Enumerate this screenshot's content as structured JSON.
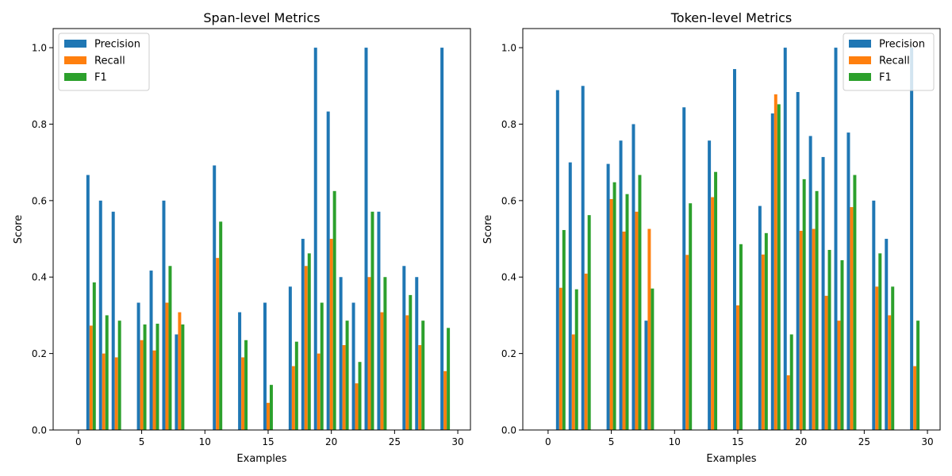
{
  "colors": {
    "precision": "#1f77b4",
    "recall": "#ff7f0e",
    "f1": "#2ca02c",
    "axis": "#000000",
    "legend_border": "#cccccc"
  },
  "chart_data": [
    {
      "type": "bar",
      "title": "Span-level Metrics",
      "xlabel": "Examples",
      "ylabel": "Score",
      "xlim": [
        -2,
        31
      ],
      "ylim": [
        0,
        1.05
      ],
      "xticks": [
        "0",
        "5",
        "10",
        "15",
        "20",
        "25",
        "30"
      ],
      "yticks": [
        "0.0",
        "0.2",
        "0.4",
        "0.6",
        "0.8",
        "1.0"
      ],
      "grid": false,
      "legend_position": "upper left",
      "x": [
        0,
        1,
        2,
        3,
        4,
        5,
        6,
        7,
        8,
        9,
        10,
        11,
        12,
        13,
        14,
        15,
        16,
        17,
        18,
        19,
        20,
        21,
        22,
        23,
        24,
        25,
        26,
        27,
        28,
        29
      ],
      "series": [
        {
          "name": "Precision",
          "values": [
            0,
            0.667,
            0.6,
            0.571,
            0,
            0.333,
            0.417,
            0.6,
            0.25,
            0,
            0,
            0.692,
            0,
            0.308,
            0,
            0.333,
            0,
            0.375,
            0.5,
            1.0,
            0.833,
            0.4,
            0.333,
            1.0,
            0.571,
            0,
            0.429,
            0.4,
            0,
            1.0
          ]
        },
        {
          "name": "Recall",
          "values": [
            0,
            0.273,
            0.2,
            0.19,
            0,
            0.235,
            0.208,
            0.333,
            0.308,
            0,
            0,
            0.45,
            0,
            0.19,
            0,
            0.071,
            0,
            0.167,
            0.429,
            0.2,
            0.5,
            0.222,
            0.122,
            0.4,
            0.308,
            0,
            0.3,
            0.222,
            0,
            0.154
          ]
        },
        {
          "name": "F1",
          "values": [
            0,
            0.386,
            0.3,
            0.286,
            0,
            0.276,
            0.278,
            0.429,
            0.276,
            0,
            0,
            0.545,
            0,
            0.235,
            0,
            0.118,
            0,
            0.231,
            0.462,
            0.333,
            0.625,
            0.286,
            0.178,
            0.571,
            0.4,
            0,
            0.353,
            0.286,
            0,
            0.267
          ]
        }
      ]
    },
    {
      "type": "bar",
      "title": "Token-level Metrics",
      "xlabel": "Examples",
      "ylabel": "Score",
      "xlim": [
        -2,
        31
      ],
      "ylim": [
        0,
        1.05
      ],
      "xticks": [
        "0",
        "5",
        "10",
        "15",
        "20",
        "25",
        "30"
      ],
      "yticks": [
        "0.0",
        "0.2",
        "0.4",
        "0.6",
        "0.8",
        "1.0"
      ],
      "grid": false,
      "legend_position": "upper right",
      "x": [
        0,
        1,
        2,
        3,
        4,
        5,
        6,
        7,
        8,
        9,
        10,
        11,
        12,
        13,
        14,
        15,
        16,
        17,
        18,
        19,
        20,
        21,
        22,
        23,
        24,
        25,
        26,
        27,
        28,
        29
      ],
      "series": [
        {
          "name": "Precision",
          "values": [
            0,
            0.889,
            0.7,
            0.9,
            0,
            0.696,
            0.757,
            0.8,
            0.286,
            0,
            0,
            0.844,
            0,
            0.757,
            0,
            0.944,
            0,
            0.586,
            0.828,
            1.0,
            0.884,
            0.769,
            0.714,
            1.0,
            0.778,
            0,
            0.6,
            0.5,
            0,
            1.0
          ]
        },
        {
          "name": "Recall",
          "values": [
            0,
            0.372,
            0.25,
            0.409,
            0,
            0.604,
            0.519,
            0.571,
            0.526,
            0,
            0,
            0.458,
            0,
            0.609,
            0,
            0.326,
            0,
            0.459,
            0.878,
            0.143,
            0.521,
            0.526,
            0.351,
            0.286,
            0.583,
            0,
            0.375,
            0.3,
            0,
            0.167
          ]
        },
        {
          "name": "F1",
          "values": [
            0,
            0.523,
            0.368,
            0.562,
            0,
            0.648,
            0.617,
            0.667,
            0.37,
            0,
            0,
            0.593,
            0,
            0.675,
            0,
            0.486,
            0,
            0.515,
            0.852,
            0.25,
            0.656,
            0.625,
            0.471,
            0.444,
            0.667,
            0,
            0.462,
            0.375,
            0,
            0.286
          ]
        }
      ]
    }
  ]
}
